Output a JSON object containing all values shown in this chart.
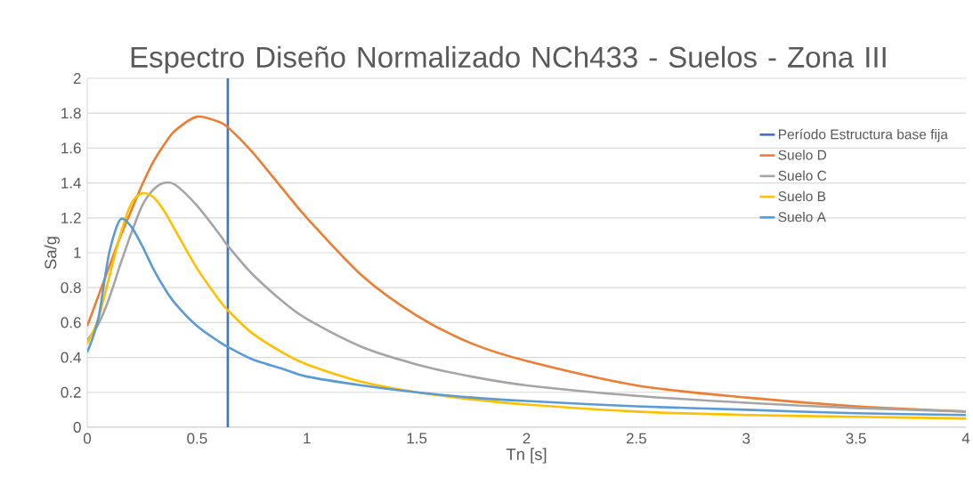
{
  "chart_data": {
    "type": "line",
    "title": "Espectro Diseño Normalizado NCh433 - Suelos - Zona III",
    "xlabel": "Tn [s]",
    "ylabel": "Sa/g",
    "x": [
      0,
      0.05,
      0.1,
      0.15,
      0.2,
      0.25,
      0.3,
      0.35,
      0.4,
      0.5,
      0.6,
      0.64,
      0.75,
      0.9,
      1,
      1.25,
      1.5,
      1.75,
      2,
      2.5,
      3,
      3.5,
      4
    ],
    "series": [
      {
        "name": "Período Estructura base fija",
        "color": "#4472c4",
        "x": [
          0.64,
          0.64
        ],
        "values": [
          0,
          2
        ]
      },
      {
        "name": "Suelo D",
        "color": "#ed7d31",
        "values": [
          0.58,
          0.75,
          0.92,
          1.09,
          1.24,
          1.39,
          1.52,
          1.62,
          1.7,
          1.78,
          1.75,
          1.72,
          1.58,
          1.35,
          1.2,
          0.87,
          0.64,
          0.48,
          0.38,
          0.24,
          0.17,
          0.12,
          0.09
        ]
      },
      {
        "name": "Suelo C",
        "color": "#a5a5a5",
        "values": [
          0.5,
          0.59,
          0.74,
          0.93,
          1.11,
          1.27,
          1.36,
          1.4,
          1.39,
          1.27,
          1.11,
          1.04,
          0.88,
          0.71,
          0.62,
          0.46,
          0.36,
          0.29,
          0.24,
          0.18,
          0.14,
          0.11,
          0.09
        ]
      },
      {
        "name": "Suelo B",
        "color": "#ffc000",
        "values": [
          0.48,
          0.62,
          0.86,
          1.1,
          1.28,
          1.34,
          1.32,
          1.24,
          1.13,
          0.91,
          0.73,
          0.67,
          0.54,
          0.42,
          0.36,
          0.26,
          0.2,
          0.16,
          0.13,
          0.09,
          0.07,
          0.06,
          0.05
        ]
      },
      {
        "name": "Suelo A",
        "color": "#5b9bd5",
        "values": [
          0.43,
          0.62,
          1.0,
          1.19,
          1.15,
          1.04,
          0.91,
          0.8,
          0.71,
          0.58,
          0.49,
          0.46,
          0.39,
          0.33,
          0.29,
          0.24,
          0.2,
          0.17,
          0.15,
          0.12,
          0.1,
          0.08,
          0.07
        ]
      }
    ],
    "xlim": [
      0,
      4
    ],
    "xticks": [
      0,
      0.5,
      1,
      1.5,
      2,
      2.5,
      3,
      3.5,
      4
    ],
    "ylim": [
      0,
      2
    ],
    "yticks": [
      0,
      0.2,
      0.4,
      0.6,
      0.8,
      1,
      1.2,
      1.4,
      1.6,
      1.8,
      2
    ],
    "grid": "y",
    "legend": "right",
    "marker": "none",
    "line_style": "solid"
  }
}
